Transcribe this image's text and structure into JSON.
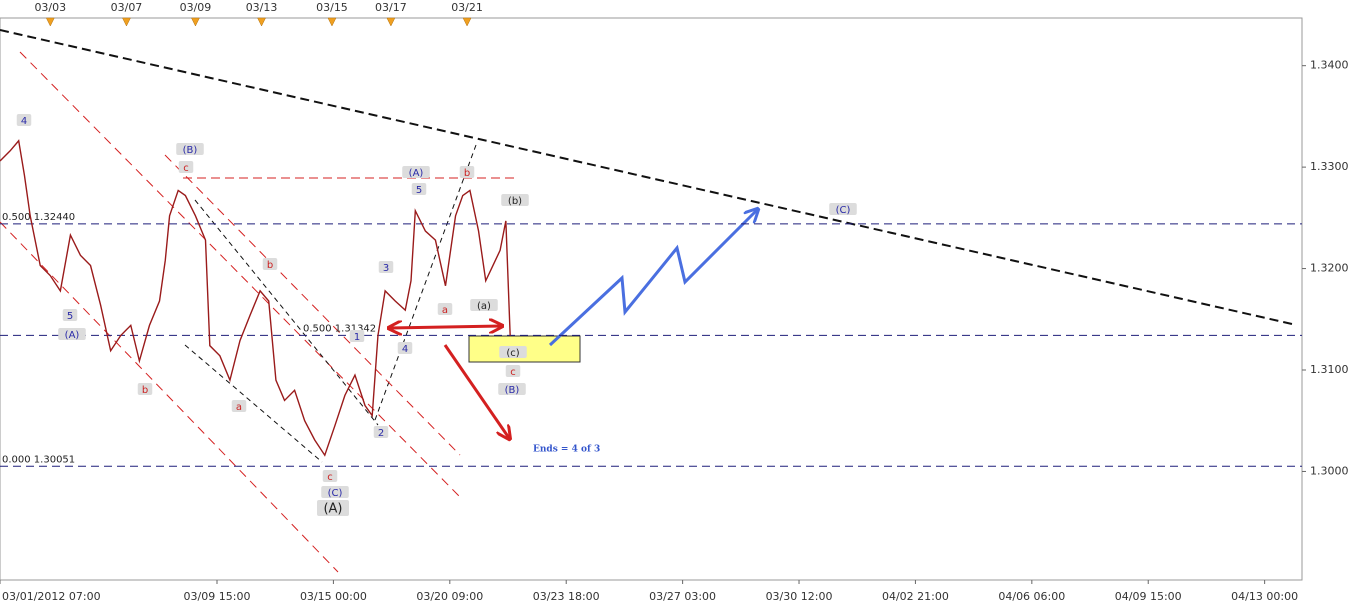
{
  "chart_data": {
    "type": "line",
    "x": [
      0,
      7,
      13,
      17,
      21,
      28,
      35,
      42,
      49,
      56,
      63,
      70,
      77,
      84,
      91,
      97,
      104,
      111,
      115,
      118,
      124,
      129,
      136,
      143,
      146,
      153,
      160,
      167,
      174,
      181,
      187,
      192,
      198,
      205,
      212,
      219,
      226,
      233,
      240,
      247,
      254,
      259,
      263,
      268,
      275,
      282,
      286,
      289,
      296,
      303,
      310,
      317,
      322,
      327,
      333,
      338,
      343,
      348,
      352,
      355
    ],
    "series": [
      {
        "color": "#9a1b1b",
        "values": [
          1.3306,
          1.3316,
          1.3326,
          1.3292,
          1.3252,
          1.3203,
          1.3193,
          1.3178,
          1.3233,
          1.3213,
          1.3203,
          1.3164,
          1.3119,
          1.3134,
          1.3144,
          1.3109,
          1.3144,
          1.3168,
          1.3208,
          1.3252,
          1.3277,
          1.3272,
          1.3252,
          1.3228,
          1.3124,
          1.3114,
          1.309,
          1.3129,
          1.3154,
          1.3178,
          1.3168,
          1.309,
          1.307,
          1.308,
          1.305,
          1.3031,
          1.3016,
          1.3045,
          1.3075,
          1.3095,
          1.3065,
          1.3055,
          1.3134,
          1.3178,
          1.3168,
          1.3159,
          1.3188,
          1.3257,
          1.3237,
          1.3228,
          1.3183,
          1.3252,
          1.3272,
          1.3277,
          1.3237,
          1.3188,
          1.3203,
          1.3218,
          1.3247,
          1.3134
        ]
      }
    ],
    "xlim": [
      0,
      906
    ],
    "xticks": [
      {
        "value": 0,
        "label": "03/01/2012 07:00"
      },
      {
        "value": 151,
        "label": "03/09 15:00"
      },
      {
        "value": 232,
        "label": "03/15 00:00"
      },
      {
        "value": 313,
        "label": "03/20 09:00"
      },
      {
        "value": 394,
        "label": "03/23 18:00"
      },
      {
        "value": 475,
        "label": "03/27 03:00"
      },
      {
        "value": 556,
        "label": "03/30 12:00"
      },
      {
        "value": 637,
        "label": "04/02 21:00"
      },
      {
        "value": 718,
        "label": "04/06 06:00"
      },
      {
        "value": 799,
        "label": "04/09 15:00"
      },
      {
        "value": 880,
        "label": "04/13 00:00"
      }
    ],
    "x2ticks": [
      {
        "value": 35,
        "label": "03/03"
      },
      {
        "value": 88,
        "label": "03/07"
      },
      {
        "value": 136,
        "label": "03/09"
      },
      {
        "value": 182,
        "label": "03/13"
      },
      {
        "value": 231,
        "label": "03/15"
      },
      {
        "value": 272,
        "label": "03/17"
      },
      {
        "value": 325,
        "label": "03/21"
      }
    ],
    "ylim": [
      1.2893,
      1.3447
    ],
    "yticks": [
      {
        "value": 1.3,
        "label": "1.3000"
      },
      {
        "value": 1.31,
        "label": "1.3100"
      },
      {
        "value": 1.32,
        "label": "1.3200"
      },
      {
        "value": 1.33,
        "label": "1.3300"
      },
      {
        "value": 1.34,
        "label": "1.3400"
      }
    ],
    "levels": [
      {
        "label": "0.500 1.32440",
        "value": 1.3244
      },
      {
        "label": "0.500 1.31342",
        "value": 1.31342
      },
      {
        "label": "0.000 1.30051",
        "value": 1.30051
      }
    ],
    "level_color": "#1f1f7a",
    "annotations": [
      {
        "text": "4",
        "color": "#2a2aa8"
      },
      {
        "text": "5",
        "color": "#2a2aa8"
      },
      {
        "text": "(A)",
        "color": "#2a2aa8"
      },
      {
        "text": "b",
        "color": "#cc2222"
      },
      {
        "text": "(B)",
        "color": "#2a2aa8"
      },
      {
        "text": "c",
        "color": "#cc2222"
      },
      {
        "text": "b",
        "color": "#cc2222"
      },
      {
        "text": "a",
        "color": "#cc2222"
      },
      {
        "text": "c",
        "color": "#cc2222"
      },
      {
        "text": "(C)",
        "color": "#2a2aa8"
      },
      {
        "text": "(A)",
        "color": "#222222"
      },
      {
        "text": "1",
        "color": "#2a2aa8"
      },
      {
        "text": "2",
        "color": "#2a2aa8"
      },
      {
        "text": "3",
        "color": "#2a2aa8"
      },
      {
        "text": "4",
        "color": "#2a2aa8"
      },
      {
        "text": "5",
        "color": "#2a2aa8"
      },
      {
        "text": "(A)",
        "color": "#2a2aa8"
      },
      {
        "text": "b",
        "color": "#cc2222"
      },
      {
        "text": "a",
        "color": "#cc2222"
      },
      {
        "text": "(a)",
        "color": "#222222"
      },
      {
        "text": "(b)",
        "color": "#222222"
      },
      {
        "text": "(c)",
        "color": "#222222"
      },
      {
        "text": "c",
        "color": "#cc2222"
      },
      {
        "text": "(B)",
        "color": "#2a2aa8"
      },
      {
        "text": "(C)",
        "color": "#2a2aa8"
      }
    ],
    "note": "Ends = 4 of 3"
  }
}
